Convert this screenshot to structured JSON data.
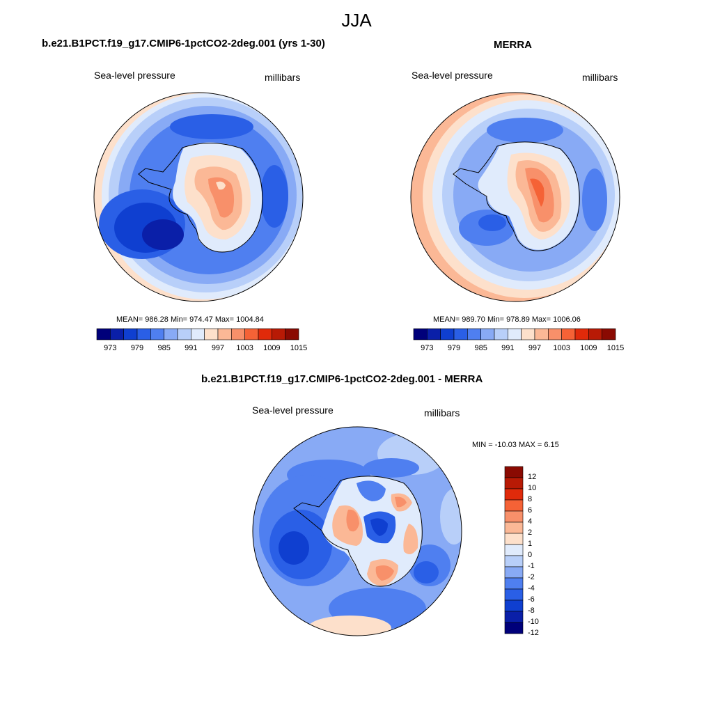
{
  "figure": {
    "season": "JJA"
  },
  "colors": {
    "abs_palette": [
      "#00007a",
      "#0a1fa8",
      "#0f3fd0",
      "#2a5fe6",
      "#4f7ff0",
      "#88aaf5",
      "#b8cff9",
      "#e0ebfc",
      "#fde0cb",
      "#fbb896",
      "#f8906a",
      "#f56236",
      "#e02a0a",
      "#b81a05",
      "#8a0a02"
    ],
    "diff_palette": [
      "#00007a",
      "#0a1fa8",
      "#0f3fd0",
      "#2a5fe6",
      "#4f7ff0",
      "#88aaf5",
      "#b8cff9",
      "#e0ebfc",
      "#fde0cb",
      "#fbb896",
      "#f8906a",
      "#f56236",
      "#e02a0a",
      "#b81a05",
      "#8a0a02"
    ]
  },
  "panels": {
    "model": {
      "title": "b.e21.B1PCT.f19_g17.CMIP6-1pctCO2-2deg.001 (yrs 1-30)",
      "variable": "Sea-level pressure",
      "units": "millibars",
      "stats": "MEAN= 986.28  Min= 974.47  Max= 1004.84",
      "icon": "antarctic-polar-map-icon"
    },
    "obs": {
      "title": "MERRA",
      "variable": "Sea-level pressure",
      "units": "millibars",
      "stats": "MEAN= 989.70  Min= 978.89  Max= 1006.06",
      "icon": "antarctic-polar-map-icon"
    },
    "diff": {
      "title": "b.e21.B1PCT.f19_g17.CMIP6-1pctCO2-2deg.001 - MERRA",
      "variable": "Sea-level pressure",
      "units": "millibars",
      "stats": "MIN = -10.03 MAX =   6.15",
      "icon": "antarctic-polar-map-icon"
    }
  },
  "colorbars": {
    "abs_ticks": [
      "973",
      "979",
      "985",
      "991",
      "997",
      "1003",
      "1009",
      "1015"
    ],
    "diff_ticks": [
      "12",
      "10",
      "8",
      "6",
      "4",
      "2",
      "1",
      "0",
      "-1",
      "-2",
      "-4",
      "-6",
      "-8",
      "-10",
      "-12"
    ]
  }
}
